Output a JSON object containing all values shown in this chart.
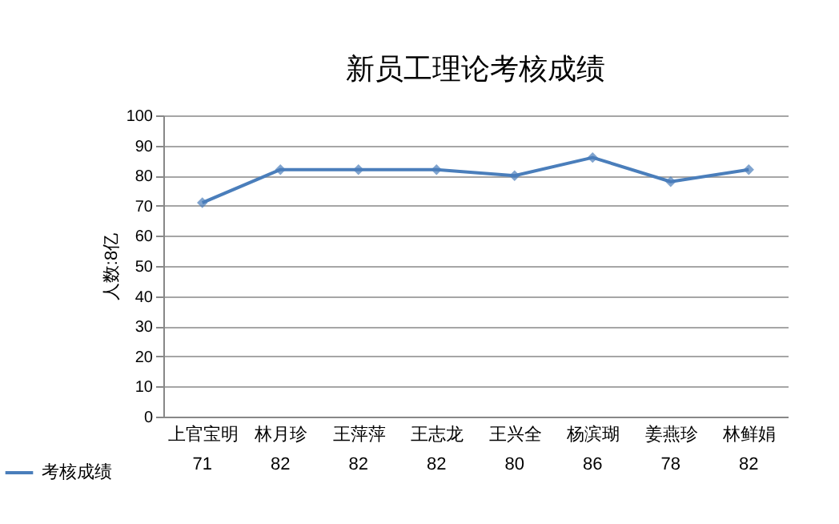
{
  "chart_data": {
    "type": "line",
    "title": "新员工理论考核成绩",
    "ylabel": "人数:8亿",
    "categories": [
      "上官宝明",
      "林月珍",
      "王萍萍",
      "王志龙",
      "王兴全",
      "杨滨瑚",
      "姜燕珍",
      "林鲜娟"
    ],
    "series": [
      {
        "name": "考核成绩",
        "color": "#4a7ebb",
        "values": [
          71,
          82,
          82,
          82,
          80,
          86,
          78,
          82
        ]
      }
    ],
    "ylim": [
      0,
      100
    ],
    "yticks": [
      0,
      10,
      20,
      30,
      40,
      50,
      60,
      70,
      80,
      90,
      100
    ],
    "grid": "y",
    "legend": "bottom left",
    "marker": "diamond",
    "line_style": "solid",
    "data_labels": true
  }
}
